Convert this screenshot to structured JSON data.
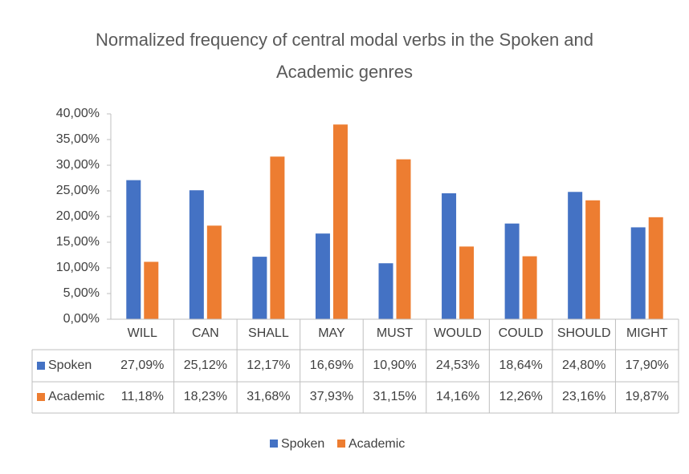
{
  "chart_data": {
    "type": "bar",
    "title": "Normalized frequency of central modal verbs in the Spoken and Academic genres",
    "categories": [
      "WILL",
      "CAN",
      "SHALL",
      "MAY",
      "MUST",
      "WOULD",
      "COULD",
      "SHOULD",
      "MIGHT"
    ],
    "series": [
      {
        "name": "Spoken",
        "color": "#4472c4",
        "values": [
          27.09,
          25.12,
          12.17,
          16.69,
          10.9,
          24.53,
          18.64,
          24.8,
          17.9
        ],
        "value_labels": [
          "27,09%",
          "25,12%",
          "12,17%",
          "16,69%",
          "10,90%",
          "24,53%",
          "18,64%",
          "24,80%",
          "17,90%"
        ]
      },
      {
        "name": "Academic",
        "color": "#ed7d31",
        "values": [
          11.18,
          18.23,
          31.68,
          37.93,
          31.15,
          14.16,
          12.26,
          23.16,
          19.87
        ],
        "value_labels": [
          "11,18%",
          "18,23%",
          "31,68%",
          "37,93%",
          "31,15%",
          "14,16%",
          "12,26%",
          "23,16%",
          "19,87%"
        ]
      }
    ],
    "ylim": [
      0,
      40
    ],
    "yticks": [
      {
        "value": 0,
        "label": "0,00%"
      },
      {
        "value": 5,
        "label": "5,00%"
      },
      {
        "value": 10,
        "label": "10,00%"
      },
      {
        "value": 15,
        "label": "15,00%"
      },
      {
        "value": 20,
        "label": "20,00%"
      },
      {
        "value": 25,
        "label": "25,00%"
      },
      {
        "value": 30,
        "label": "30,00%"
      },
      {
        "value": 35,
        "label": "35,00%"
      },
      {
        "value": 40,
        "label": "40,00%"
      }
    ],
    "legend": "bottom",
    "data_table": true
  }
}
